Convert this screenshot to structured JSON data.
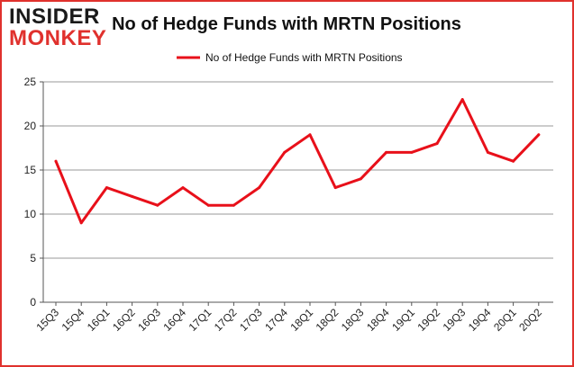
{
  "logo": {
    "line1": "INSIDER",
    "line2": "MONKEY"
  },
  "chart_data": {
    "type": "line",
    "title": "No of Hedge Funds with MRTN Positions",
    "categories": [
      "15Q3",
      "15Q4",
      "16Q1",
      "16Q2",
      "16Q3",
      "16Q4",
      "17Q1",
      "17Q2",
      "17Q3",
      "17Q4",
      "18Q1",
      "18Q2",
      "18Q3",
      "18Q4",
      "19Q1",
      "19Q2",
      "19Q3",
      "19Q4",
      "20Q1",
      "20Q2"
    ],
    "series": [
      {
        "name": "No of Hedge Funds with MRTN Positions",
        "values": [
          16,
          9,
          13,
          12,
          11,
          13,
          11,
          11,
          13,
          17,
          19,
          13,
          14,
          17,
          17,
          18,
          23,
          17,
          16,
          19
        ]
      }
    ],
    "ylim": [
      0,
      25
    ],
    "yticks": [
      0,
      5,
      10,
      15,
      20,
      25
    ],
    "grid": true,
    "legend_position": "top-center",
    "line_color": "#e8101a",
    "border_color": "#e0312d"
  }
}
